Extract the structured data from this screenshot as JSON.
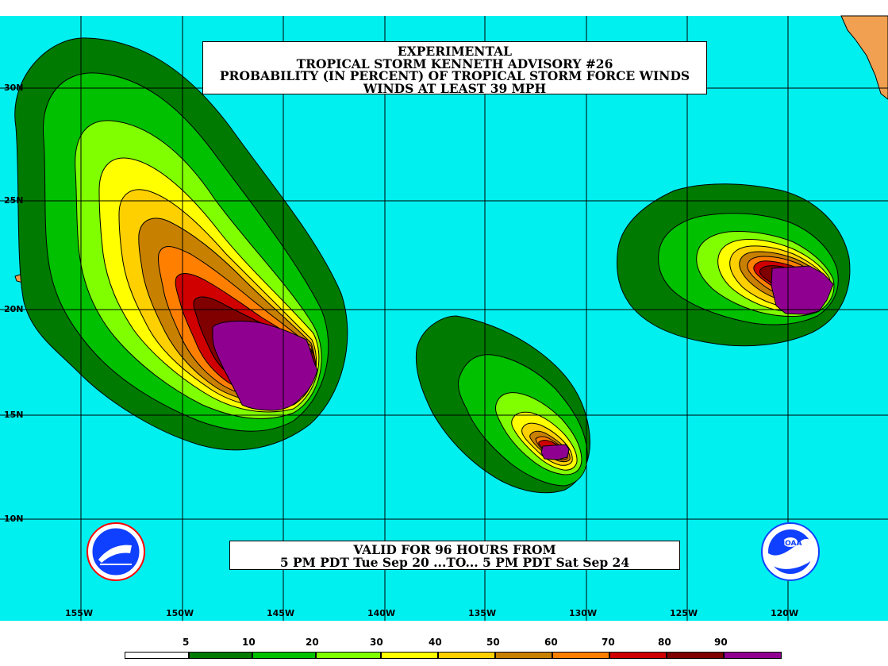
{
  "title": {
    "line1": "EXPERIMENTAL",
    "line2": "TROPICAL STORM KENNETH ADVISORY #26",
    "line3": "PROBABILITY (IN PERCENT) OF TROPICAL STORM FORCE WINDS",
    "line4": "WINDS AT LEAST 39 MPH"
  },
  "valid": {
    "line1": "VALID FOR 96 HOURS FROM",
    "line2": "5 PM PDT Tue Sep 20 ...TO... 5 PM PDT Sat Sep 24"
  },
  "latitude_labels": [
    "30N",
    "25N",
    "20N",
    "15N",
    "10N"
  ],
  "longitude_labels": [
    "155W",
    "150W",
    "145W",
    "140W",
    "135W",
    "130W",
    "125W",
    "120W"
  ],
  "legend": {
    "ticks": [
      "5",
      "10",
      "20",
      "30",
      "40",
      "50",
      "60",
      "70",
      "80",
      "90"
    ],
    "colors": [
      "#ffffff",
      "#007a00",
      "#00c000",
      "#80ff00",
      "#ffff00",
      "#ffd000",
      "#c88000",
      "#ff8000",
      "#d00000",
      "#800000",
      "#900090"
    ]
  },
  "colors": {
    "ocean": "#00f0f0",
    "land": "#f0a050",
    "grid": "#000000"
  },
  "logos": {
    "left": "nws-logo",
    "right": "noaa-logo"
  }
}
